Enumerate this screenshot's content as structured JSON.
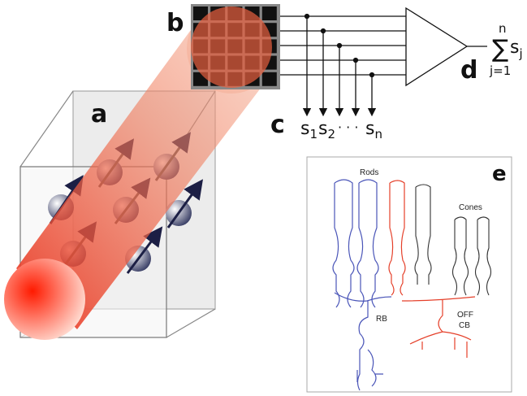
{
  "panels": {
    "a": "a",
    "b": "b",
    "c": "c",
    "d": "d",
    "e": "e"
  },
  "outputs": [
    {
      "symbol": "s",
      "index": "1"
    },
    {
      "symbol": "s",
      "index": "2"
    },
    {
      "symbol": "s",
      "index": "n"
    }
  ],
  "ellipsis": "· · ·",
  "sum": {
    "symbol": "∑",
    "upper": "n",
    "lower": "j=1",
    "term": "s",
    "term_index": "j"
  },
  "inset": {
    "rods": "Rods",
    "cones": "Cones",
    "rb": "RB",
    "off": "OFF",
    "cb": "CB"
  }
}
